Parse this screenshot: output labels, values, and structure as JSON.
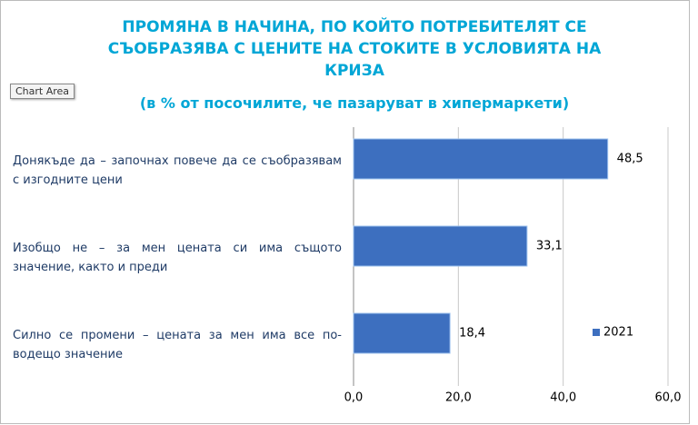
{
  "chart_data": {
    "type": "hbar",
    "title": "ПРОМЯНА В НАЧИНА, ПО КОЙТО ПОТРЕБИТЕЛЯТ СЕ СЪОБРАЗЯВА С ЦЕНИТЕ НА СТОКИТЕ В УСЛОВИЯТА НА КРИЗА",
    "subtitle": "(в % от посочилите, че пазаруват в хипермаркети)",
    "tooltip": "Chart Area",
    "categories": [
      "Донякъде да – започнах повече да се съобразявам с изгодните цени",
      "Изобщо не – за мен цената си има същото значение, както и преди",
      "Силно се промени – цената за мен има все по-водещо значение"
    ],
    "series": [
      {
        "name": "2021",
        "color": "#3d6fbf",
        "values": [
          48.5,
          33.1,
          18.4
        ],
        "value_labels": [
          "48,5",
          "33,1",
          "18,4"
        ]
      }
    ],
    "xlim": [
      0,
      60
    ],
    "xticks": [
      {
        "value": 0,
        "label": "0,0"
      },
      {
        "value": 20,
        "label": "20,0"
      },
      {
        "value": 40,
        "label": "40,0"
      },
      {
        "value": 60,
        "label": "60,0"
      }
    ],
    "grid": true,
    "legend": "right"
  }
}
